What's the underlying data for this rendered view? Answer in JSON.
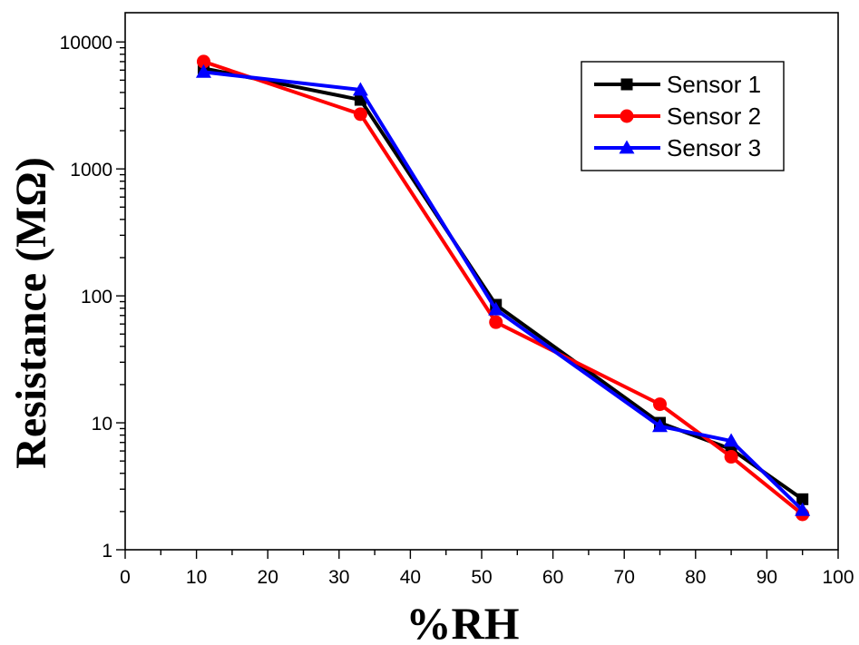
{
  "chart_data": {
    "type": "line",
    "title": "",
    "xlabel": "%RH",
    "ylabel": "Resistance (MΩ)",
    "xlim": [
      0,
      100
    ],
    "ylim": [
      1,
      17000
    ],
    "yscale": "log",
    "x_ticks": [
      0,
      10,
      20,
      30,
      40,
      50,
      60,
      70,
      80,
      90,
      100
    ],
    "x_tick_labels": [
      "0",
      "10",
      "20",
      "30",
      "40",
      "50",
      "60",
      "70",
      "80",
      "90",
      "100"
    ],
    "y_ticks": [
      1,
      10,
      100,
      1000,
      10000
    ],
    "y_tick_labels": [
      "1",
      "10",
      "100",
      "1000",
      "10000"
    ],
    "grid": false,
    "legend_position": "top-right",
    "x": [
      11,
      33,
      52,
      75,
      85,
      95
    ],
    "series": [
      {
        "name": "Sensor 1",
        "color": "#000000",
        "marker": "square",
        "values": [
          6200,
          3500,
          85,
          10,
          6.2,
          2.5
        ]
      },
      {
        "name": "Sensor 2",
        "color": "#ff0000",
        "marker": "circle",
        "values": [
          7000,
          2700,
          62,
          14,
          5.4,
          1.9
        ]
      },
      {
        "name": "Sensor 3",
        "color": "#0000ff",
        "marker": "triangle",
        "values": [
          5800,
          4200,
          78,
          9.4,
          7.2,
          2.05
        ]
      }
    ]
  }
}
